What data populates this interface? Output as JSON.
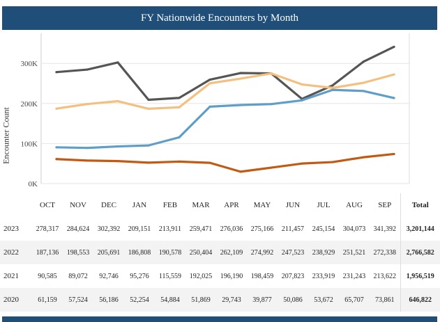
{
  "title": "FY Nationwide Encounters by Month",
  "chart_data": {
    "type": "line",
    "ylabel": "Encounter Count",
    "ylim": [
      0,
      375000
    ],
    "y_ticks": [
      0,
      100000,
      200000,
      300000
    ],
    "y_tick_labels": [
      "0K",
      "100K",
      "200K",
      "300K"
    ],
    "grid": true,
    "categories": [
      "OCT",
      "NOV",
      "DEC",
      "JAN",
      "FEB",
      "MAR",
      "APR",
      "MAY",
      "JUN",
      "JUL",
      "AUG",
      "SEP"
    ],
    "series": [
      {
        "year": "2023",
        "color": "#555555",
        "values": [
          278317,
          284624,
          302392,
          209151,
          213911,
          259471,
          276036,
          275166,
          211457,
          245154,
          304073,
          341392
        ]
      },
      {
        "year": "2022",
        "color": "#f5bf80",
        "values": [
          187136,
          198553,
          205691,
          186808,
          190578,
          250404,
          262109,
          274992,
          247523,
          238929,
          251521,
          272338
        ]
      },
      {
        "year": "2021",
        "color": "#5f9ec8",
        "values": [
          90585,
          89072,
          92746,
          95276,
          115559,
          192025,
          196190,
          198459,
          207823,
          233919,
          231243,
          213622
        ]
      },
      {
        "year": "2020",
        "color": "#c25a12",
        "values": [
          61159,
          57524,
          56186,
          52254,
          54884,
          51869,
          29743,
          39877,
          50086,
          53672,
          65707,
          73861
        ]
      }
    ]
  },
  "table": {
    "total_label": "Total",
    "rows": [
      {
        "year": "2023",
        "values": [
          "278,317",
          "284,624",
          "302,392",
          "209,151",
          "213,911",
          "259,471",
          "276,036",
          "275,166",
          "211,457",
          "245,154",
          "304,073",
          "341,392"
        ],
        "total": "3,201,144"
      },
      {
        "year": "2022",
        "values": [
          "187,136",
          "198,553",
          "205,691",
          "186,808",
          "190,578",
          "250,404",
          "262,109",
          "274,992",
          "247,523",
          "238,929",
          "251,521",
          "272,338"
        ],
        "total": "2,766,582"
      },
      {
        "year": "2021",
        "values": [
          "90,585",
          "89,072",
          "92,746",
          "95,276",
          "115,559",
          "192,025",
          "196,190",
          "198,459",
          "207,823",
          "233,919",
          "231,243",
          "213,622"
        ],
        "total": "1,956,519"
      },
      {
        "year": "2020",
        "values": [
          "61,159",
          "57,524",
          "56,186",
          "52,254",
          "54,884",
          "51,869",
          "29,743",
          "39,877",
          "50,086",
          "53,672",
          "65,707",
          "73,861"
        ],
        "total": "646,822"
      }
    ]
  }
}
